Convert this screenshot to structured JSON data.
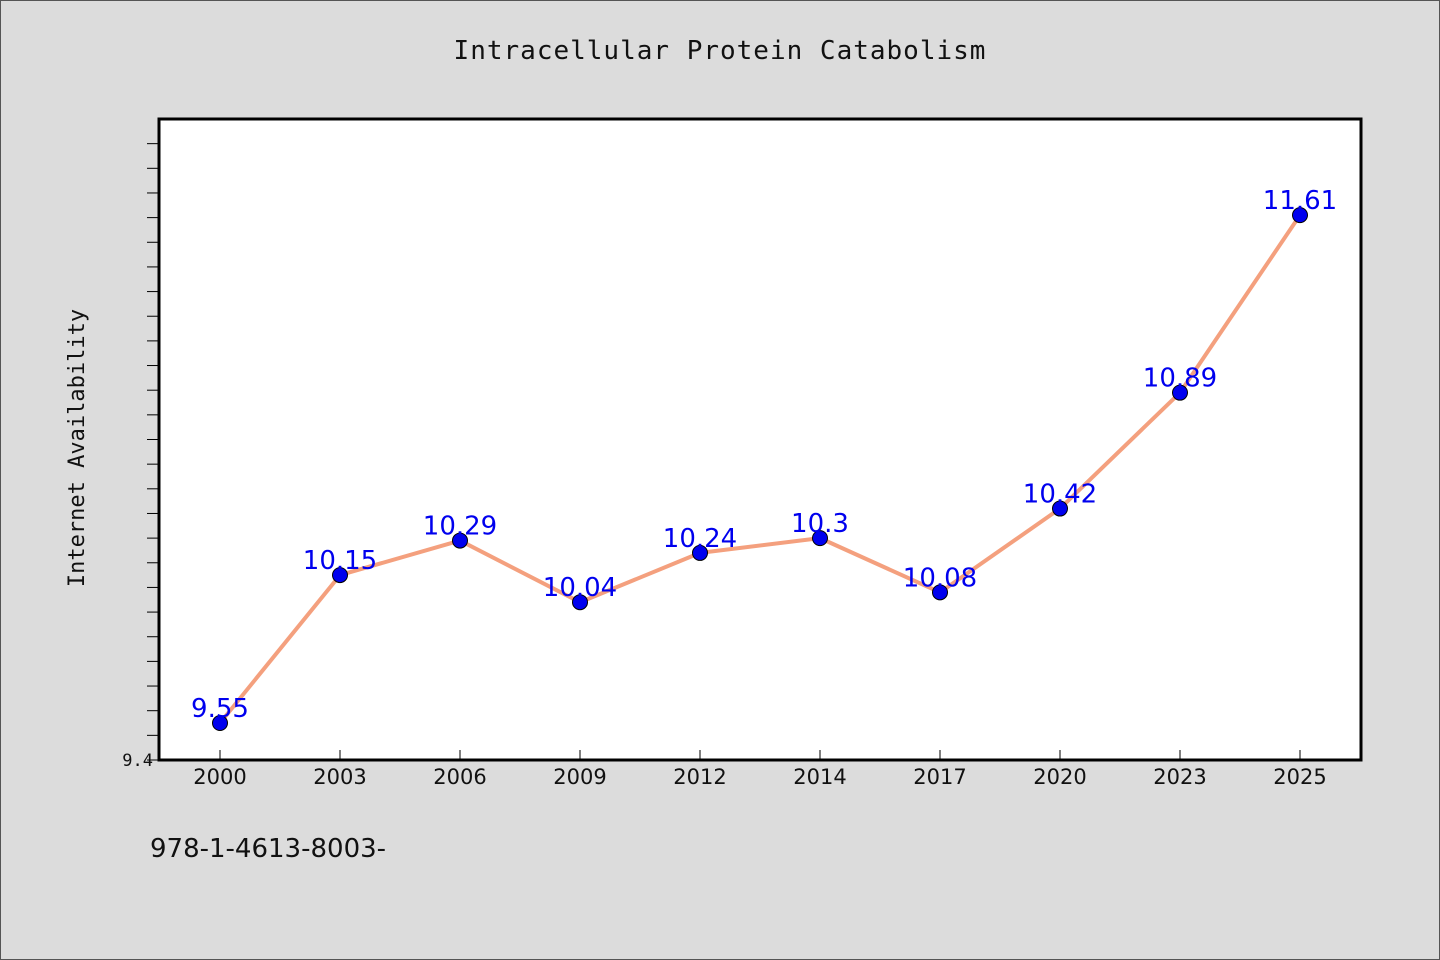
{
  "chart_data": {
    "type": "line",
    "title": "Intracellular Protein Catabolism",
    "xlabel": "",
    "ylabel": "Internet Availability",
    "categories": [
      "2000",
      "2003",
      "2006",
      "2009",
      "2012",
      "2014",
      "2017",
      "2020",
      "2023",
      "2025"
    ],
    "series": [
      {
        "values": [
          9.55,
          10.15,
          10.29,
          10.04,
          10.24,
          10.3,
          10.08,
          10.42,
          10.89,
          11.61
        ],
        "labels": [
          "9.55",
          "10.15",
          "10.29",
          "10.04",
          "10.24",
          "10.3",
          "10.08",
          "10.42",
          "10.89",
          "11.61"
        ],
        "line_color": "#f4a07e",
        "marker_color": "#0000ee",
        "label_color": "#0000ee"
      }
    ],
    "y_tick_labels": [
      "9.4"
    ],
    "ylim": [
      9.4,
      12.0
    ],
    "grid": false,
    "legend": "none"
  },
  "footer_text": "978-1-4613-8003-",
  "colors": {
    "background": "#dcdcdc",
    "plot_background": "#ffffff",
    "axis": "#000000"
  }
}
